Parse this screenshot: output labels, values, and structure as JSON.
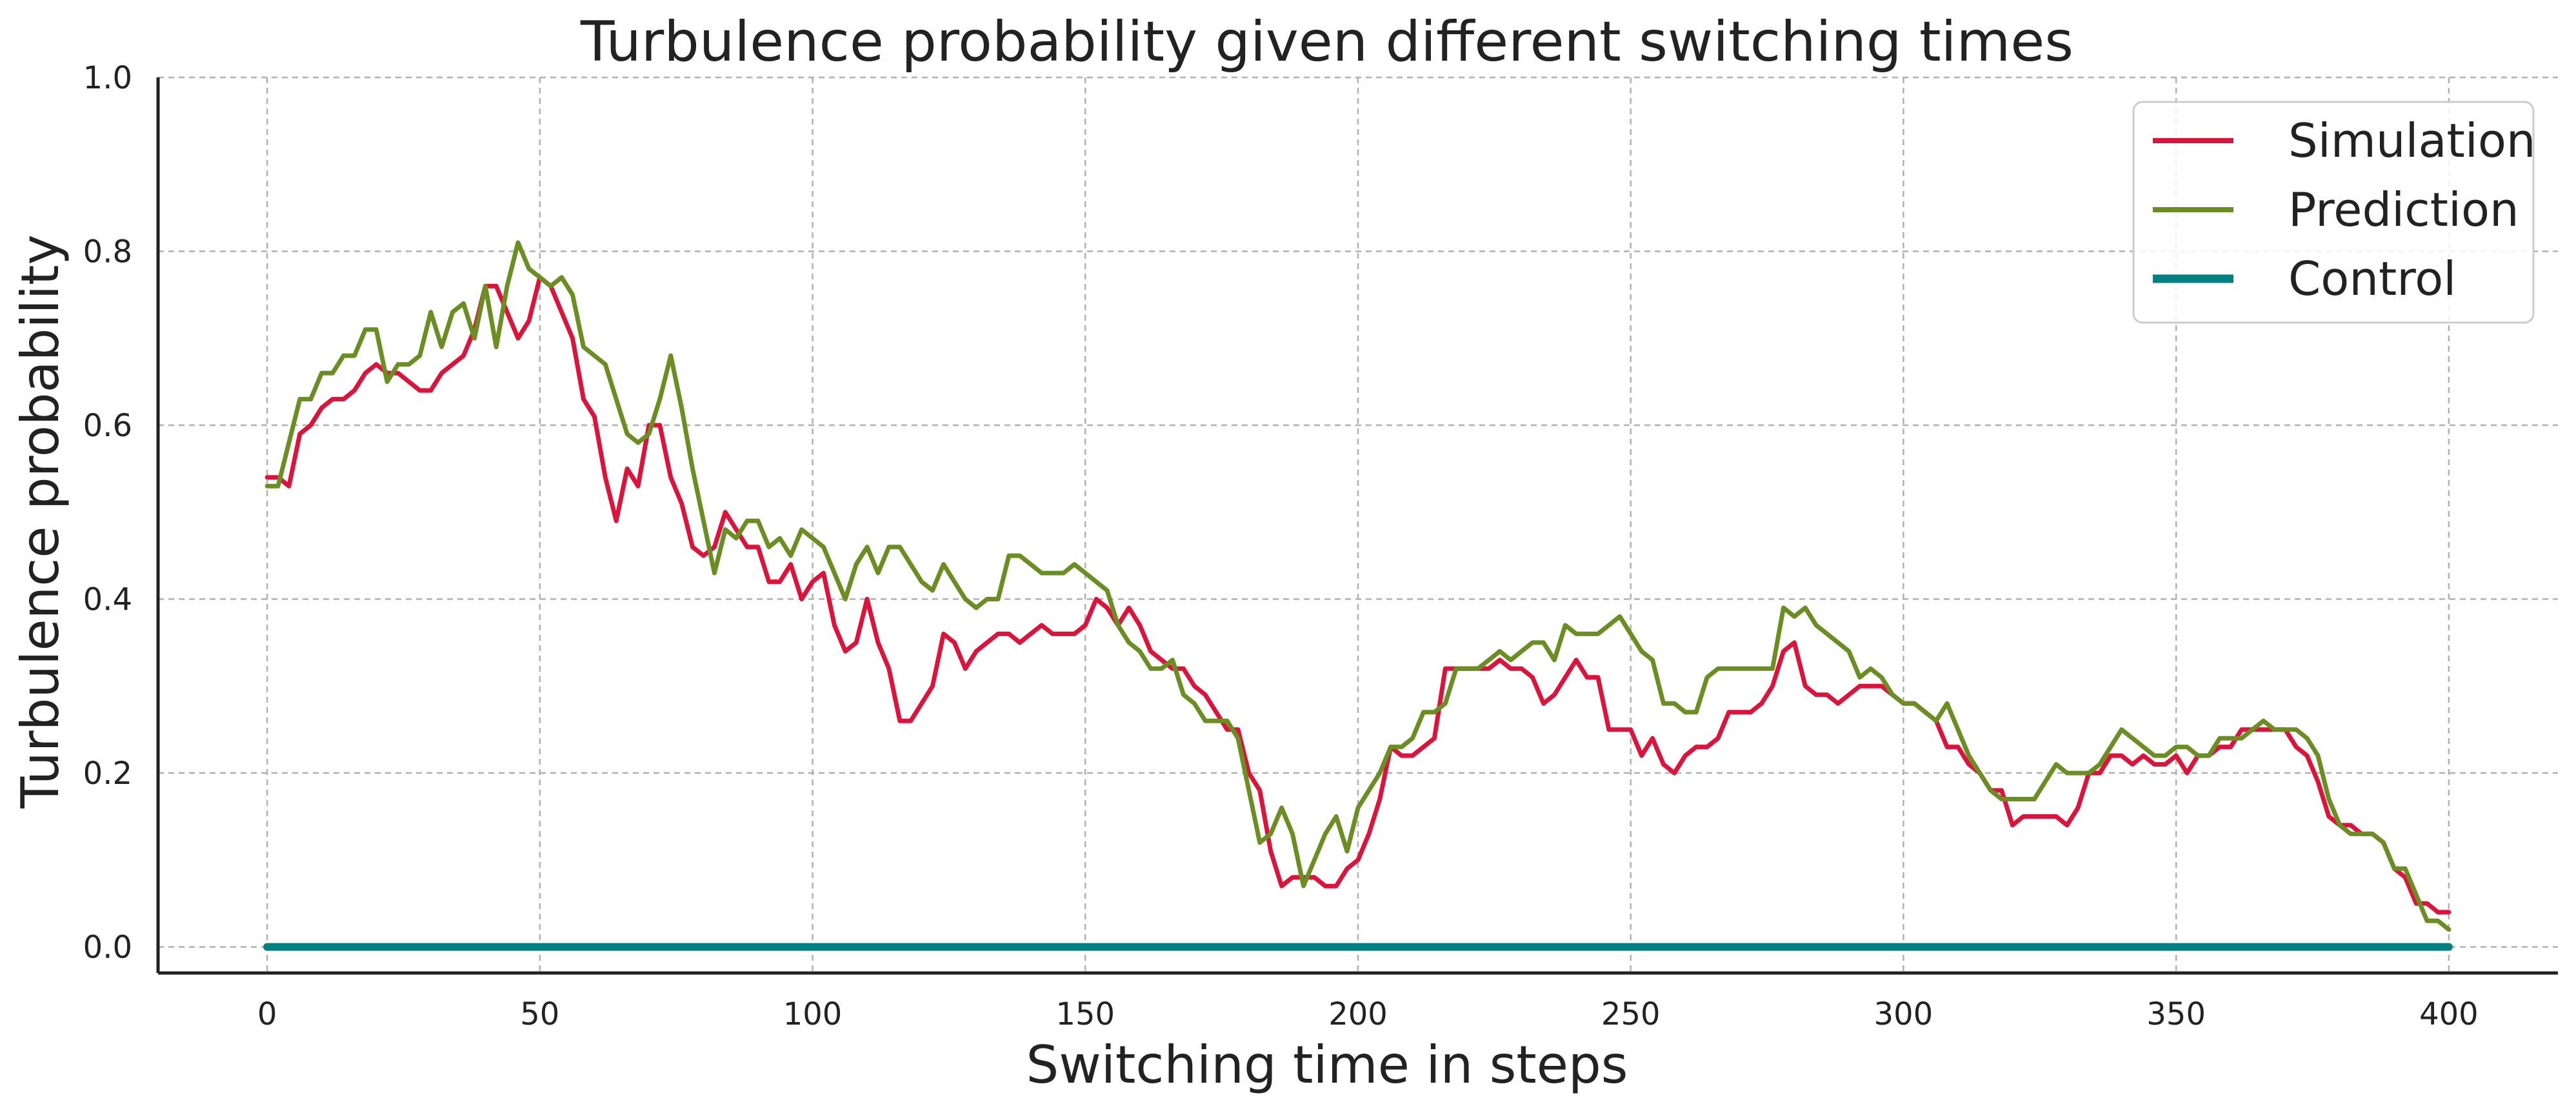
{
  "chart_data": {
    "type": "line",
    "title": "Turbulence probability given different switching times",
    "xlabel": "Switching time in steps",
    "ylabel": "Turbulence probability",
    "xlim": [
      -20,
      420
    ],
    "ylim": [
      -0.03,
      1.0
    ],
    "xticks": [
      0,
      50,
      100,
      150,
      200,
      250,
      300,
      350,
      400
    ],
    "xtick_labels": [
      "0",
      "50",
      "100",
      "150",
      "200",
      "250",
      "300",
      "350",
      "400"
    ],
    "yticks": [
      0.0,
      0.2,
      0.4,
      0.6,
      0.8,
      1.0
    ],
    "ytick_labels": [
      "0.0",
      "0.2",
      "0.4",
      "0.6",
      "0.8",
      "1.0"
    ],
    "grid": true,
    "legend_position": "top-right",
    "series": [
      {
        "name": "Simulation",
        "color": "#dc143c",
        "width": 7,
        "x": [
          0,
          2,
          4,
          6,
          8,
          10,
          12,
          14,
          16,
          18,
          20,
          22,
          24,
          26,
          28,
          30,
          32,
          34,
          36,
          38,
          40,
          42,
          44,
          46,
          48,
          50,
          52,
          54,
          56,
          58,
          60,
          62,
          64,
          66,
          68,
          70,
          72,
          74,
          76,
          78,
          80,
          82,
          84,
          86,
          88,
          90,
          92,
          94,
          96,
          98,
          100,
          102,
          104,
          106,
          108,
          110,
          112,
          114,
          116,
          118,
          120,
          122,
          124,
          126,
          128,
          130,
          132,
          134,
          136,
          138,
          140,
          142,
          144,
          146,
          148,
          150,
          152,
          154,
          156,
          158,
          160,
          162,
          164,
          166,
          168,
          170,
          172,
          174,
          176,
          178,
          180,
          182,
          184,
          186,
          188,
          190,
          192,
          194,
          196,
          198,
          200,
          202,
          204,
          206,
          208,
          210,
          212,
          214,
          216,
          218,
          220,
          222,
          224,
          226,
          228,
          230,
          232,
          234,
          236,
          238,
          240,
          242,
          244,
          246,
          248,
          250,
          252,
          254,
          256,
          258,
          260,
          262,
          264,
          266,
          268,
          270,
          272,
          274,
          276,
          278,
          280,
          282,
          284,
          286,
          288,
          290,
          292,
          294,
          296,
          298,
          300,
          302,
          304,
          306,
          308,
          310,
          312,
          314,
          316,
          318,
          320,
          322,
          324,
          326,
          328,
          330,
          332,
          334,
          336,
          338,
          340,
          342,
          344,
          346,
          348,
          350,
          352,
          354,
          356,
          358,
          360,
          362,
          364,
          366,
          368,
          370,
          372,
          374,
          376,
          378,
          380,
          382,
          384,
          386,
          388,
          390,
          392,
          394,
          396,
          398,
          400
        ],
        "y": [
          0.54,
          0.54,
          0.53,
          0.59,
          0.6,
          0.62,
          0.63,
          0.63,
          0.64,
          0.66,
          0.67,
          0.66,
          0.66,
          0.65,
          0.64,
          0.64,
          0.66,
          0.67,
          0.68,
          0.71,
          0.76,
          0.76,
          0.73,
          0.7,
          0.72,
          0.77,
          0.76,
          0.73,
          0.7,
          0.63,
          0.61,
          0.54,
          0.49,
          0.55,
          0.53,
          0.6,
          0.6,
          0.54,
          0.51,
          0.46,
          0.45,
          0.46,
          0.5,
          0.48,
          0.46,
          0.46,
          0.42,
          0.42,
          0.44,
          0.4,
          0.42,
          0.43,
          0.37,
          0.34,
          0.35,
          0.4,
          0.35,
          0.32,
          0.26,
          0.26,
          0.28,
          0.3,
          0.36,
          0.35,
          0.32,
          0.34,
          0.35,
          0.36,
          0.36,
          0.35,
          0.36,
          0.37,
          0.36,
          0.36,
          0.36,
          0.37,
          0.4,
          0.39,
          0.37,
          0.39,
          0.37,
          0.34,
          0.33,
          0.32,
          0.32,
          0.3,
          0.29,
          0.27,
          0.25,
          0.25,
          0.2,
          0.18,
          0.11,
          0.07,
          0.08,
          0.08,
          0.08,
          0.07,
          0.07,
          0.09,
          0.1,
          0.13,
          0.17,
          0.23,
          0.22,
          0.22,
          0.23,
          0.24,
          0.32,
          0.32,
          0.32,
          0.32,
          0.32,
          0.33,
          0.32,
          0.32,
          0.31,
          0.28,
          0.29,
          0.31,
          0.33,
          0.31,
          0.31,
          0.25,
          0.25,
          0.25,
          0.22,
          0.24,
          0.21,
          0.2,
          0.22,
          0.23,
          0.23,
          0.24,
          0.27,
          0.27,
          0.27,
          0.28,
          0.3,
          0.34,
          0.35,
          0.3,
          0.29,
          0.29,
          0.28,
          0.29,
          0.3,
          0.3,
          0.3,
          0.29,
          0.28,
          0.28,
          0.27,
          0.26,
          0.23,
          0.23,
          0.21,
          0.2,
          0.18,
          0.18,
          0.14,
          0.15,
          0.15,
          0.15,
          0.15,
          0.14,
          0.16,
          0.2,
          0.2,
          0.22,
          0.22,
          0.21,
          0.22,
          0.21,
          0.21,
          0.22,
          0.2,
          0.22,
          0.22,
          0.23,
          0.23,
          0.25,
          0.25,
          0.25,
          0.25,
          0.25,
          0.23,
          0.22,
          0.19,
          0.15,
          0.14,
          0.14,
          0.13,
          0.13,
          0.12,
          0.09,
          0.08,
          0.05,
          0.05,
          0.04,
          0.04
        ]
      },
      {
        "name": "Prediction",
        "color": "#6b8e23",
        "width": 7,
        "x": [
          0,
          2,
          4,
          6,
          8,
          10,
          12,
          14,
          16,
          18,
          20,
          22,
          24,
          26,
          28,
          30,
          32,
          34,
          36,
          38,
          40,
          42,
          44,
          46,
          48,
          50,
          52,
          54,
          56,
          58,
          60,
          62,
          64,
          66,
          68,
          70,
          72,
          74,
          76,
          78,
          80,
          82,
          84,
          86,
          88,
          90,
          92,
          94,
          96,
          98,
          100,
          102,
          104,
          106,
          108,
          110,
          112,
          114,
          116,
          118,
          120,
          122,
          124,
          126,
          128,
          130,
          132,
          134,
          136,
          138,
          140,
          142,
          144,
          146,
          148,
          150,
          152,
          154,
          156,
          158,
          160,
          162,
          164,
          166,
          168,
          170,
          172,
          174,
          176,
          178,
          180,
          182,
          184,
          186,
          188,
          190,
          192,
          194,
          196,
          198,
          200,
          202,
          204,
          206,
          208,
          210,
          212,
          214,
          216,
          218,
          220,
          222,
          224,
          226,
          228,
          230,
          232,
          234,
          236,
          238,
          240,
          242,
          244,
          246,
          248,
          250,
          252,
          254,
          256,
          258,
          260,
          262,
          264,
          266,
          268,
          270,
          272,
          274,
          276,
          278,
          280,
          282,
          284,
          286,
          288,
          290,
          292,
          294,
          296,
          298,
          300,
          302,
          304,
          306,
          308,
          310,
          312,
          314,
          316,
          318,
          320,
          322,
          324,
          326,
          328,
          330,
          332,
          334,
          336,
          338,
          340,
          342,
          344,
          346,
          348,
          350,
          352,
          354,
          356,
          358,
          360,
          362,
          364,
          366,
          368,
          370,
          372,
          374,
          376,
          378,
          380,
          382,
          384,
          386,
          388,
          390,
          392,
          394,
          396,
          398,
          400
        ],
        "y": [
          0.53,
          0.53,
          0.58,
          0.63,
          0.63,
          0.66,
          0.66,
          0.68,
          0.68,
          0.71,
          0.71,
          0.65,
          0.67,
          0.67,
          0.68,
          0.73,
          0.69,
          0.73,
          0.74,
          0.7,
          0.76,
          0.69,
          0.76,
          0.81,
          0.78,
          0.77,
          0.76,
          0.77,
          0.75,
          0.69,
          0.68,
          0.67,
          0.63,
          0.59,
          0.58,
          0.59,
          0.63,
          0.68,
          0.62,
          0.55,
          0.49,
          0.43,
          0.48,
          0.47,
          0.49,
          0.49,
          0.46,
          0.47,
          0.45,
          0.48,
          0.47,
          0.46,
          0.43,
          0.4,
          0.44,
          0.46,
          0.43,
          0.46,
          0.46,
          0.44,
          0.42,
          0.41,
          0.44,
          0.42,
          0.4,
          0.39,
          0.4,
          0.4,
          0.45,
          0.45,
          0.44,
          0.43,
          0.43,
          0.43,
          0.44,
          0.43,
          0.42,
          0.41,
          0.37,
          0.35,
          0.34,
          0.32,
          0.32,
          0.33,
          0.29,
          0.28,
          0.26,
          0.26,
          0.26,
          0.24,
          0.18,
          0.12,
          0.13,
          0.16,
          0.13,
          0.07,
          0.1,
          0.13,
          0.15,
          0.11,
          0.16,
          0.18,
          0.2,
          0.23,
          0.23,
          0.24,
          0.27,
          0.27,
          0.28,
          0.32,
          0.32,
          0.32,
          0.33,
          0.34,
          0.33,
          0.34,
          0.35,
          0.35,
          0.33,
          0.37,
          0.36,
          0.36,
          0.36,
          0.37,
          0.38,
          0.36,
          0.34,
          0.33,
          0.28,
          0.28,
          0.27,
          0.27,
          0.31,
          0.32,
          0.32,
          0.32,
          0.32,
          0.32,
          0.32,
          0.39,
          0.38,
          0.39,
          0.37,
          0.36,
          0.35,
          0.34,
          0.31,
          0.32,
          0.31,
          0.29,
          0.28,
          0.28,
          0.27,
          0.26,
          0.28,
          0.25,
          0.22,
          0.2,
          0.18,
          0.17,
          0.17,
          0.17,
          0.17,
          0.19,
          0.21,
          0.2,
          0.2,
          0.2,
          0.21,
          0.23,
          0.25,
          0.24,
          0.23,
          0.22,
          0.22,
          0.23,
          0.23,
          0.22,
          0.22,
          0.24,
          0.24,
          0.24,
          0.25,
          0.26,
          0.25,
          0.25,
          0.25,
          0.24,
          0.22,
          0.17,
          0.14,
          0.13,
          0.13,
          0.13,
          0.12,
          0.09,
          0.09,
          0.06,
          0.03,
          0.03,
          0.02
        ]
      },
      {
        "name": "Control",
        "color": "#008080",
        "width": 12,
        "x": [
          0,
          400
        ],
        "y": [
          0.0,
          0.0
        ]
      }
    ]
  }
}
